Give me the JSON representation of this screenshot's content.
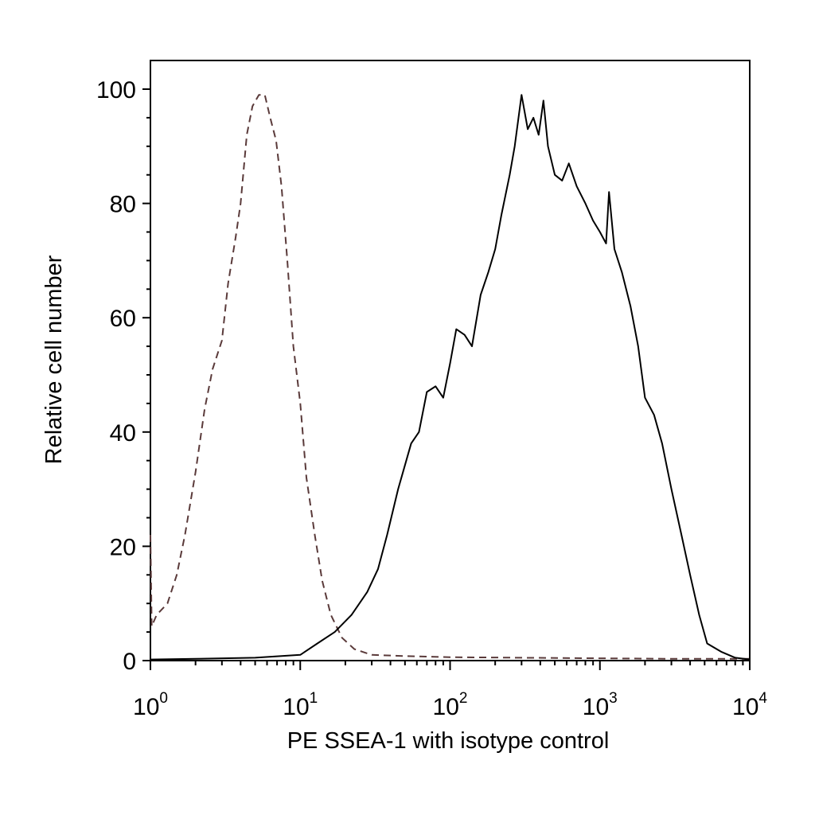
{
  "chart_data": {
    "type": "line",
    "xlabel": "PE SSEA-1 with isotype control",
    "ylabel": "Relative cell number",
    "x_scale": "log",
    "xlim": [
      1,
      10000
    ],
    "ylim": [
      0,
      100
    ],
    "x_ticks": [
      {
        "value": 1,
        "base": "10",
        "exp": "0"
      },
      {
        "value": 10,
        "base": "10",
        "exp": "1"
      },
      {
        "value": 100,
        "base": "10",
        "exp": "2"
      },
      {
        "value": 1000,
        "base": "10",
        "exp": "3"
      },
      {
        "value": 10000,
        "base": "10",
        "exp": "4"
      }
    ],
    "y_ticks": [
      "0",
      "20",
      "40",
      "60",
      "80",
      "100"
    ],
    "grid": false,
    "legend": "none",
    "series": [
      {
        "style": "dashed",
        "color": "#5a3a3a",
        "points": [
          [
            1.0,
            22
          ],
          [
            1.02,
            6
          ],
          [
            1.1,
            8
          ],
          [
            1.3,
            10
          ],
          [
            1.5,
            15
          ],
          [
            1.7,
            22
          ],
          [
            2.0,
            33
          ],
          [
            2.3,
            44
          ],
          [
            2.6,
            51
          ],
          [
            3.0,
            56
          ],
          [
            3.3,
            66
          ],
          [
            3.7,
            74
          ],
          [
            4.0,
            80
          ],
          [
            4.4,
            92
          ],
          [
            4.8,
            97
          ],
          [
            5.3,
            99
          ],
          [
            5.8,
            99
          ],
          [
            6.3,
            95
          ],
          [
            6.9,
            91
          ],
          [
            7.5,
            83
          ],
          [
            8.2,
            70
          ],
          [
            9.0,
            55
          ],
          [
            10.0,
            45
          ],
          [
            11.0,
            32
          ],
          [
            12.5,
            22
          ],
          [
            14.0,
            14
          ],
          [
            16.0,
            8
          ],
          [
            19.0,
            4
          ],
          [
            23.0,
            2
          ],
          [
            30.0,
            1
          ],
          [
            50.0,
            0.8
          ],
          [
            100.0,
            0.6
          ],
          [
            300.0,
            0.5
          ],
          [
            1000.0,
            0.4
          ],
          [
            3000.0,
            0.3
          ],
          [
            10000.0,
            0.3
          ]
        ]
      },
      {
        "style": "solid",
        "color": "#000000",
        "points": [
          [
            1.0,
            0.2
          ],
          [
            2.0,
            0.3
          ],
          [
            5.0,
            0.5
          ],
          [
            10.0,
            1
          ],
          [
            13.0,
            3
          ],
          [
            17.0,
            5
          ],
          [
            22.0,
            8
          ],
          [
            28.0,
            12
          ],
          [
            33.0,
            16
          ],
          [
            38.0,
            22
          ],
          [
            45.0,
            30
          ],
          [
            55.0,
            38
          ],
          [
            62.0,
            40
          ],
          [
            70.0,
            47
          ],
          [
            80.0,
            48
          ],
          [
            90.0,
            46
          ],
          [
            100.0,
            52
          ],
          [
            110.0,
            58
          ],
          [
            125.0,
            57
          ],
          [
            140.0,
            55
          ],
          [
            160.0,
            64
          ],
          [
            180.0,
            68
          ],
          [
            200.0,
            72
          ],
          [
            220.0,
            78
          ],
          [
            250.0,
            85
          ],
          [
            270.0,
            90
          ],
          [
            300.0,
            99
          ],
          [
            330.0,
            93
          ],
          [
            360.0,
            95
          ],
          [
            390.0,
            92
          ],
          [
            420.0,
            98
          ],
          [
            450.0,
            90
          ],
          [
            500.0,
            85
          ],
          [
            560.0,
            84
          ],
          [
            620.0,
            87
          ],
          [
            700.0,
            83
          ],
          [
            800.0,
            80
          ],
          [
            900.0,
            77
          ],
          [
            1000.0,
            75
          ],
          [
            1100.0,
            73
          ],
          [
            1150.0,
            82
          ],
          [
            1250.0,
            72
          ],
          [
            1400.0,
            68
          ],
          [
            1600.0,
            62
          ],
          [
            1800.0,
            55
          ],
          [
            2000.0,
            46
          ],
          [
            2300.0,
            43
          ],
          [
            2600.0,
            38
          ],
          [
            3000.0,
            30
          ],
          [
            3500.0,
            22
          ],
          [
            4000.0,
            15
          ],
          [
            4600.0,
            8
          ],
          [
            5200.0,
            3
          ],
          [
            6500.0,
            1.5
          ],
          [
            8000.0,
            0.5
          ],
          [
            10000.0,
            0.2
          ]
        ]
      }
    ]
  }
}
